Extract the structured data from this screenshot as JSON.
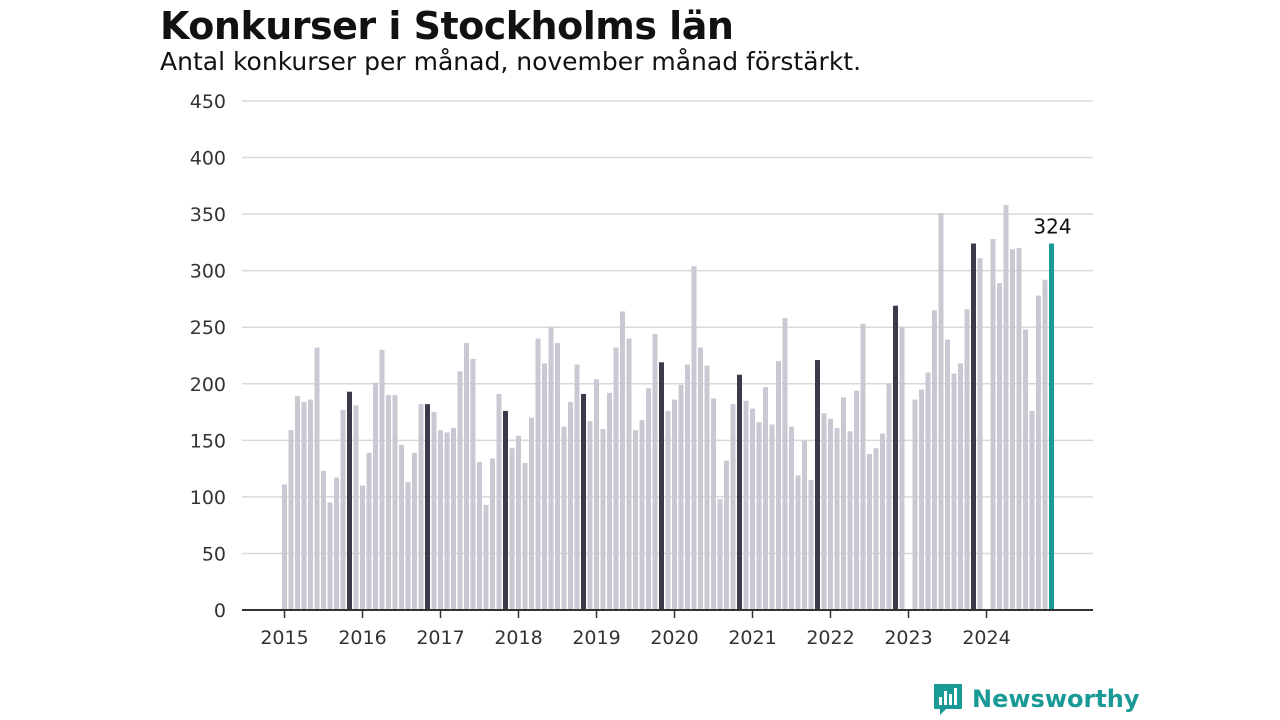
{
  "title": "Konkurser i Stockholms län",
  "subtitle": "Antal konkurser per månad, november månad förstärkt.",
  "brand": {
    "name": "Newsworthy",
    "logo_icon": "newsworthy-logo-icon"
  },
  "colors": {
    "bar": "#c9c8d3",
    "highlight": "#3c3a4a",
    "current": "#1a9a96",
    "grid": "#d9d9d9",
    "axis": "#333333",
    "text": "#111111"
  },
  "chart_data": {
    "type": "bar",
    "title": "Konkurser i Stockholms län",
    "subtitle": "Antal konkurser per månad, november månad förstärkt.",
    "ylim": [
      0,
      450
    ],
    "yticks": [
      0,
      50,
      100,
      150,
      200,
      250,
      300,
      350,
      400,
      450
    ],
    "xtick_labels": [
      "2015",
      "2016",
      "2017",
      "2018",
      "2019",
      "2020",
      "2021",
      "2022",
      "2023",
      "2024"
    ],
    "grid": true,
    "highlight_month": "november",
    "annotation": "324",
    "series": [
      {
        "year": "2015",
        "values": [
          111,
          159,
          189,
          184,
          186,
          232,
          123,
          95,
          117,
          177,
          193,
          181
        ]
      },
      {
        "year": "2016",
        "values": [
          110,
          139,
          201,
          230,
          190,
          190,
          146,
          113,
          139,
          182,
          182,
          175
        ]
      },
      {
        "year": "2017",
        "values": [
          159,
          157,
          161,
          211,
          236,
          222,
          131,
          93,
          134,
          191,
          176,
          143
        ]
      },
      {
        "year": "2018",
        "values": [
          154,
          130,
          170,
          240,
          218,
          250,
          236,
          162,
          184,
          217,
          191,
          167
        ]
      },
      {
        "year": "2019",
        "values": [
          204,
          160,
          192,
          232,
          264,
          240,
          159,
          168,
          196,
          244,
          219,
          176
        ]
      },
      {
        "year": "2020",
        "values": [
          186,
          199,
          217,
          304,
          232,
          216,
          187,
          98,
          132,
          182,
          208,
          185
        ]
      },
      {
        "year": "2021",
        "values": [
          178,
          166,
          197,
          164,
          220,
          258,
          162,
          119,
          150,
          115,
          221,
          174
        ]
      },
      {
        "year": "2022",
        "values": [
          169,
          161,
          188,
          158,
          194,
          253,
          138,
          143,
          156,
          200,
          269,
          250
        ]
      },
      {
        "year": "2023",
        "values": [
          0,
          186,
          195,
          210,
          265,
          351,
          239,
          209,
          218,
          266,
          324,
          311
        ]
      },
      {
        "year": "2024",
        "values": [
          0,
          328,
          289,
          358,
          319,
          320,
          248,
          176,
          278,
          292,
          324
        ]
      }
    ]
  }
}
